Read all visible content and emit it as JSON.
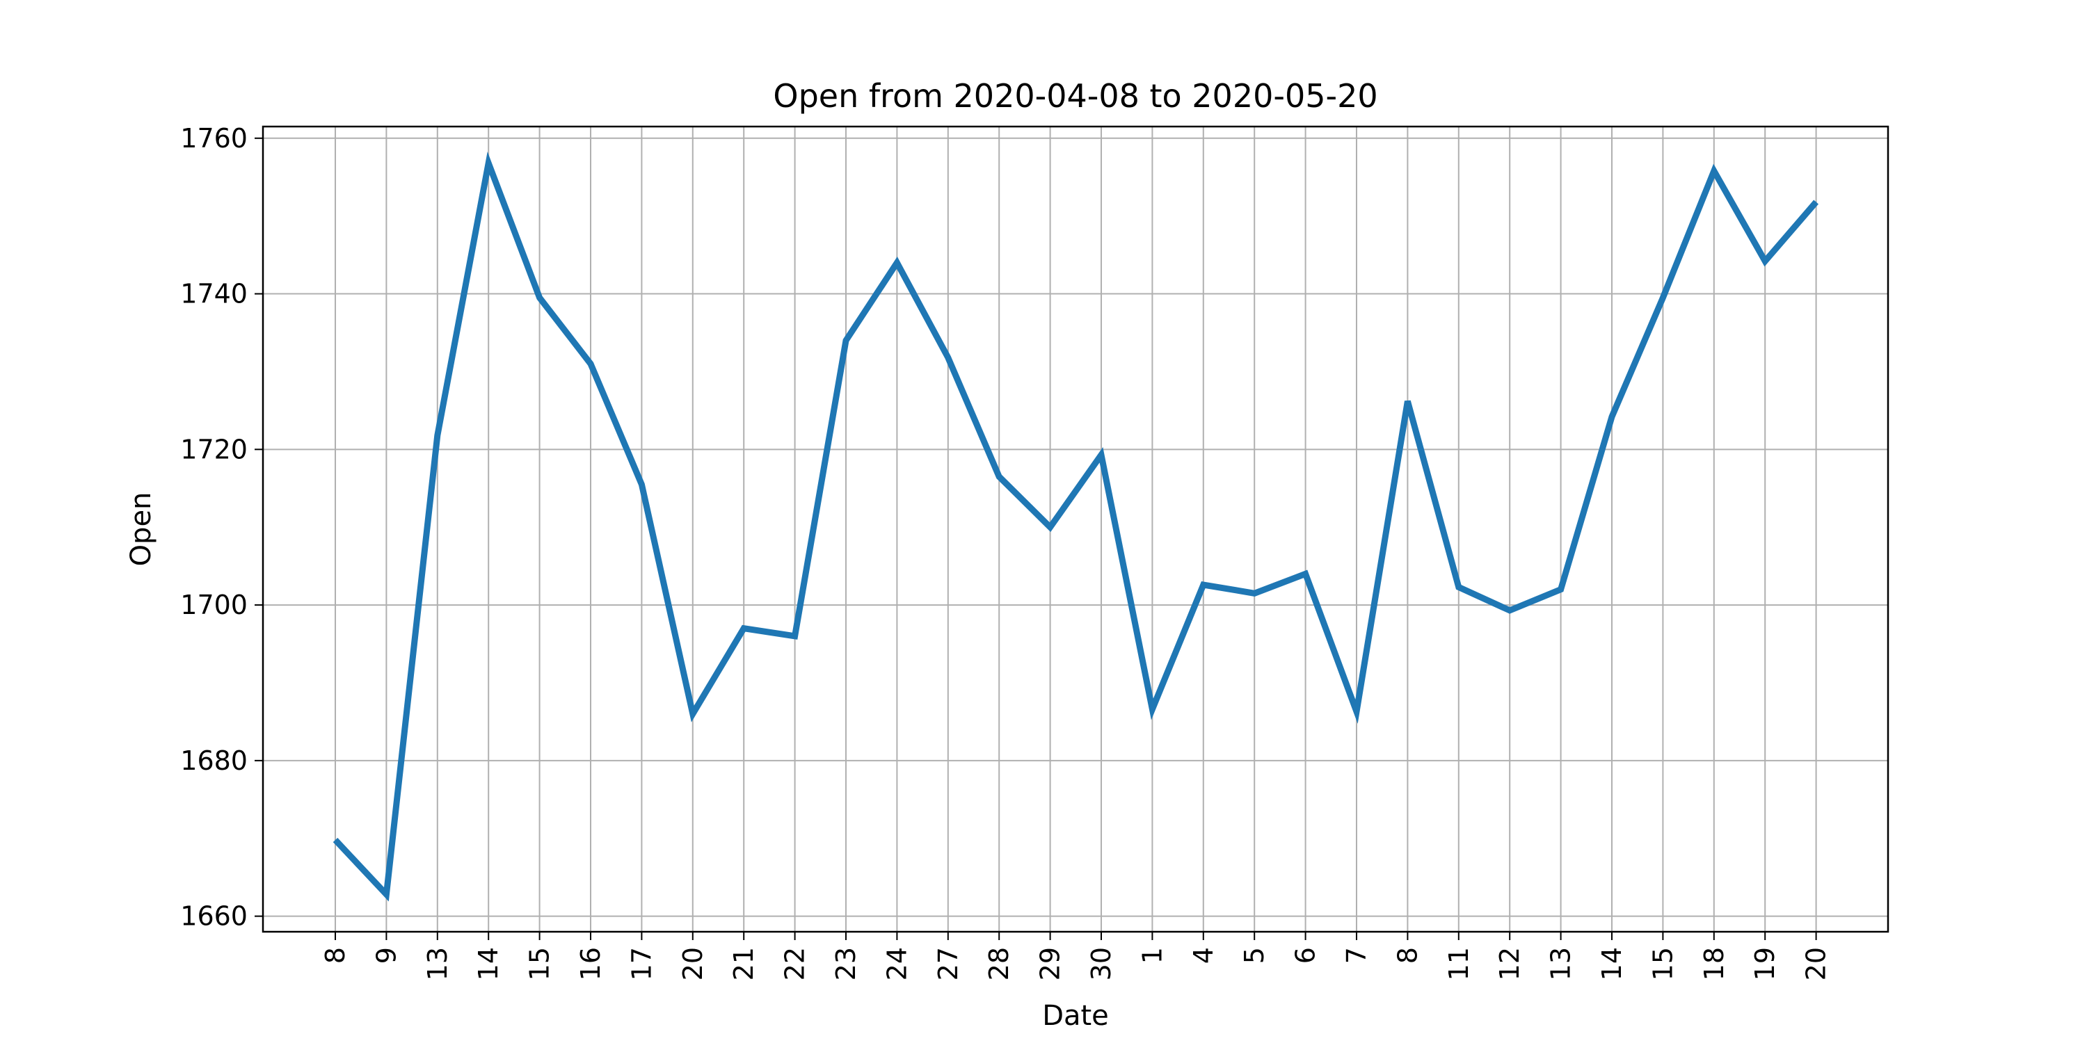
{
  "chart_data": {
    "type": "line",
    "title": "Open from 2020-04-08 to 2020-05-20",
    "xlabel": "Date",
    "ylabel": "Open",
    "x": [
      "2020-04-08",
      "2020-04-09",
      "2020-04-13",
      "2020-04-14",
      "2020-04-15",
      "2020-04-16",
      "2020-04-17",
      "2020-04-20",
      "2020-04-21",
      "2020-04-22",
      "2020-04-23",
      "2020-04-24",
      "2020-04-27",
      "2020-04-28",
      "2020-04-29",
      "2020-04-30",
      "2020-05-01",
      "2020-05-04",
      "2020-05-05",
      "2020-05-06",
      "2020-05-07",
      "2020-05-08",
      "2020-05-11",
      "2020-05-12",
      "2020-05-13",
      "2020-05-14",
      "2020-05-15",
      "2020-05-18",
      "2020-05-19",
      "2020-05-20"
    ],
    "tick_labels": [
      "8",
      "9",
      "13",
      "14",
      "15",
      "16",
      "17",
      "20",
      "21",
      "22",
      "23",
      "24",
      "27",
      "28",
      "29",
      "30",
      "1",
      "4",
      "5",
      "6",
      "7",
      "8",
      "11",
      "12",
      "13",
      "14",
      "15",
      "18",
      "19",
      "20"
    ],
    "series": [
      {
        "values": [
          1669.8,
          1662.8,
          1721.8,
          1756.8,
          1739.5,
          1731.0,
          1715.5,
          1686.0,
          1697.0,
          1696.0,
          1734.0,
          1744.0,
          1731.8,
          1716.5,
          1710.0,
          1719.3,
          1686.6,
          1702.6,
          1701.5,
          1704.0,
          1686.3,
          1726.2,
          1702.3,
          1699.3,
          1702.0,
          1724.2,
          1739.5,
          1755.8,
          1744.2,
          1751.8
        ],
        "color": "#1f77b4"
      }
    ],
    "ylim": [
      1658,
      1761.5
    ],
    "yticks": [
      1660,
      1680,
      1700,
      1720,
      1740,
      1760
    ],
    "grid": true,
    "legend": "none"
  }
}
